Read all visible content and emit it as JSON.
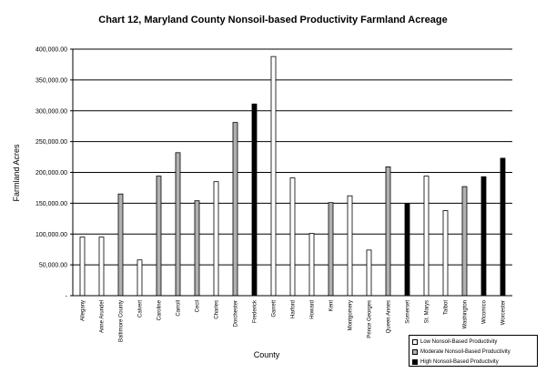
{
  "chart_data": {
    "type": "bar",
    "title": "Chart 12, Maryland County Nonsoil-based Productivity Farmland Acreage",
    "xlabel": "County",
    "ylabel": "Farmland Acres",
    "ylim": [
      0,
      400000
    ],
    "y_ticks": [
      "-",
      "50,000.00",
      "100,000.00",
      "150,000.00",
      "200,000.00",
      "250,000.00",
      "300,000.00",
      "350,000.00",
      "400,000.00"
    ],
    "grid": true,
    "legend_position": "bottom-right",
    "categories": [
      "Allegany",
      "Anne Arundel",
      "Baltimore County",
      "Calvert",
      "Caroline",
      "Carroll",
      "Cecil",
      "Charles",
      "Dorchester",
      "Frederick",
      "Garrett",
      "Harford",
      "Howard",
      "Kent",
      "Montgomery",
      "Prince Georges",
      "Queen Annes",
      "Somerset",
      "St. Marys",
      "Talbot",
      "Washington",
      "Wicomico",
      "Worcester"
    ],
    "series": [
      {
        "name": "Low Nonsoil-Based Productivity",
        "color": "#ffffff",
        "values": [
          95000,
          95000,
          null,
          58000,
          null,
          null,
          null,
          185000,
          null,
          null,
          388000,
          191000,
          101000,
          null,
          162000,
          74000,
          null,
          null,
          194000,
          138000,
          null,
          null,
          null
        ]
      },
      {
        "name": "Moderate Nonsoil-Based Productivity",
        "color": "#b0b0b0",
        "values": [
          null,
          null,
          165000,
          null,
          194000,
          232000,
          154000,
          null,
          281000,
          null,
          null,
          null,
          null,
          151000,
          null,
          null,
          209000,
          null,
          null,
          null,
          177000,
          null,
          null
        ]
      },
      {
        "name": "High Nonsoil-Based Productivity",
        "color": "#000000",
        "values": [
          null,
          null,
          null,
          null,
          null,
          null,
          null,
          null,
          null,
          311000,
          null,
          null,
          null,
          null,
          null,
          null,
          null,
          149000,
          null,
          null,
          null,
          193000,
          223000
        ]
      }
    ]
  }
}
